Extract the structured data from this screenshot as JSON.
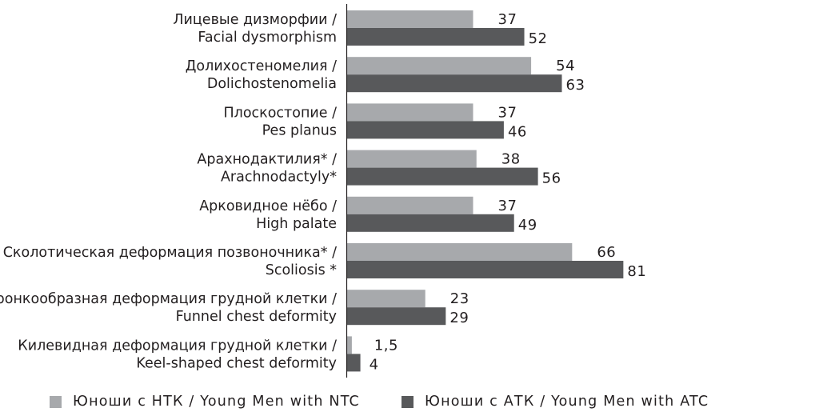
{
  "chart_data": {
    "type": "bar",
    "orientation": "horizontal",
    "categories": [
      [
        "Лицевые дизморфии /",
        "Facial dysmorphism"
      ],
      [
        "Долихостеномелия /",
        "Dolichostenomelia"
      ],
      [
        "Плоскостопие /",
        "Pes planus"
      ],
      [
        "Арахнодактилия* /",
        "Arachnodactyly*"
      ],
      [
        "Арковидное нёбо /",
        "High palate"
      ],
      [
        "Сколотическая деформация позвоночника* /",
        "Scoliosis *"
      ],
      [
        "Воронкообразная деформация грудной клетки /",
        "Funnel chest deformity"
      ],
      [
        "Килевидная деформация грудной клетки /",
        "Keel-shaped chest deformity"
      ]
    ],
    "series": [
      {
        "name": "Юноши с НТК / Young Men with NTC",
        "color": "#a7a9ac",
        "values": [
          37,
          54,
          37,
          38,
          37,
          66,
          23,
          1.5
        ],
        "labels": [
          "37",
          "54",
          "37",
          "38",
          "37",
          "66",
          "23",
          "1,5"
        ]
      },
      {
        "name": "Юноши с АТК / Young Men with ATC",
        "color": "#58595b",
        "values": [
          52,
          63,
          46,
          56,
          49,
          81,
          29,
          4
        ],
        "labels": [
          "52",
          "63",
          "46",
          "56",
          "49",
          "81",
          "29",
          "4"
        ]
      }
    ],
    "xlim": [
      0,
      100
    ],
    "grid": false,
    "legend_position": "bottom"
  }
}
